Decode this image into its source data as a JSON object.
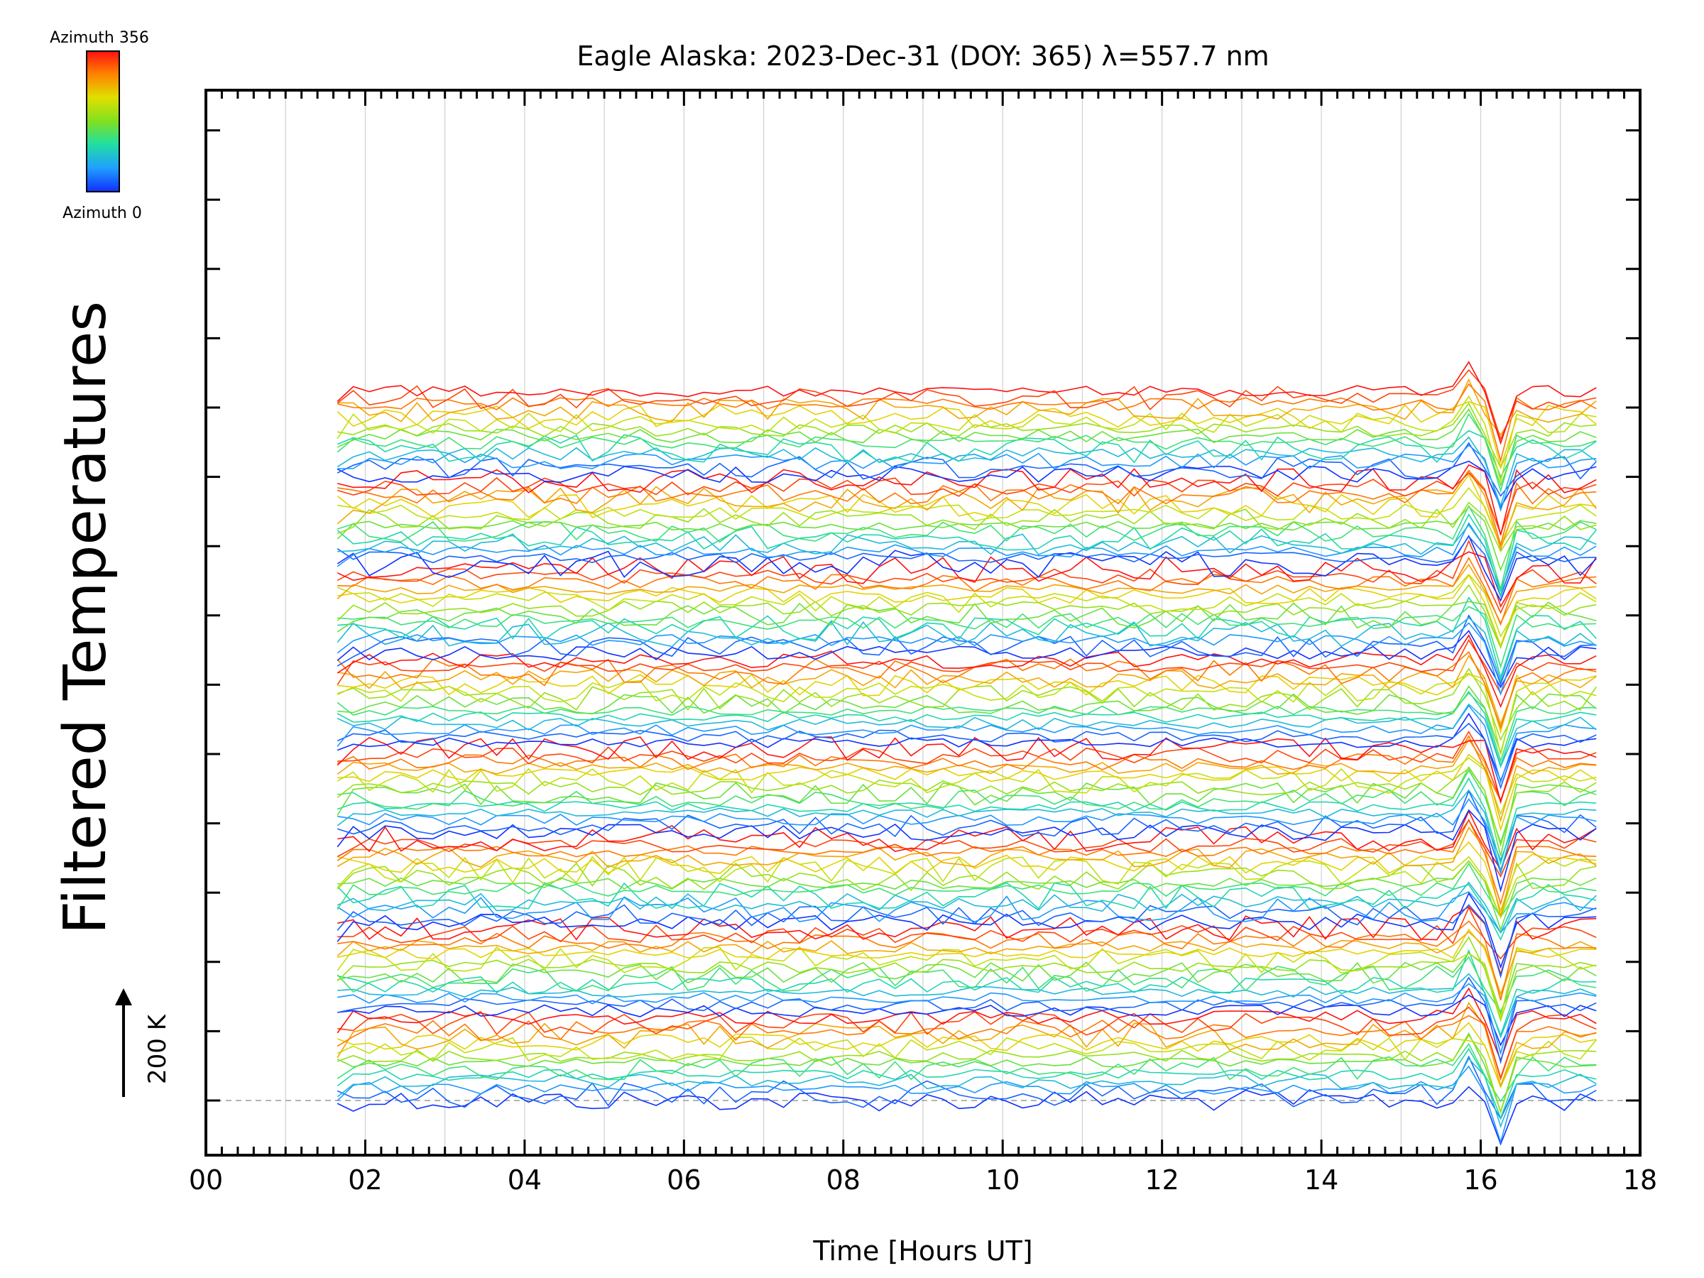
{
  "chart_data": {
    "type": "line",
    "title": "Eagle Alaska: 2023-Dec-31 (DOY: 365) λ=557.7 nm",
    "xlabel": "Time [Hours UT]",
    "ylabel": "Filtered Temperatures",
    "xlim": [
      0,
      18
    ],
    "x_ticks": [
      "00",
      "02",
      "04",
      "06",
      "08",
      "10",
      "12",
      "14",
      "16",
      "18"
    ],
    "scale_bar": {
      "label": "200 K",
      "value_k": 200
    },
    "colorbar": {
      "top_label": "Azimuth 356",
      "bottom_label": "Azimuth 0",
      "min": 0,
      "max": 356
    },
    "grid": true,
    "series_start_hour": 1.65,
    "series_end_hour": 17.6,
    "series_step_hours": 0.2,
    "series_count": 112,
    "stacked_offset_k": 40,
    "event_hour": 16.2,
    "colors": {
      "axis": "#000000",
      "grid": "#d0d0d0",
      "baseline": "#999999",
      "colormap": [
        "#1030ff",
        "#20a0ff",
        "#20e0a0",
        "#80e020",
        "#e0e000",
        "#ff8000",
        "#ff1010"
      ]
    }
  }
}
